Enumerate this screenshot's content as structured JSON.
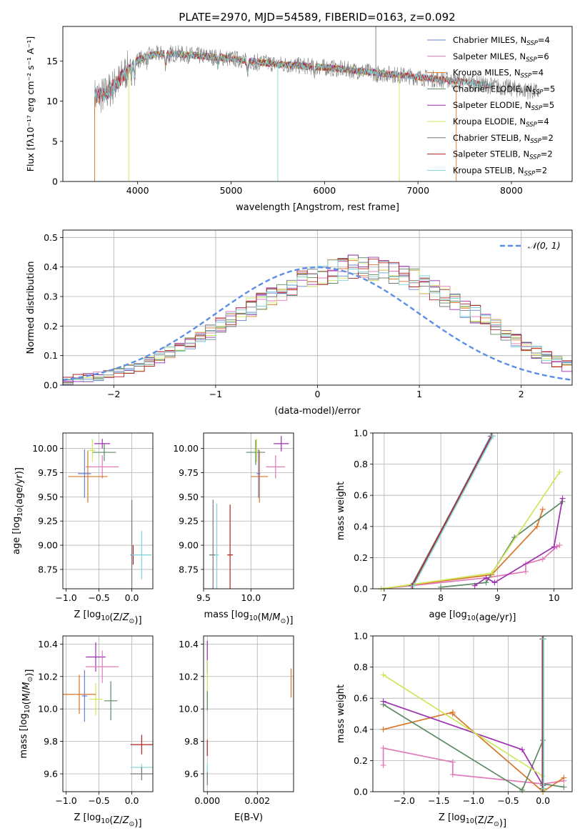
{
  "figure_title": "PLATE=2970, MJD=54589, FIBERID=0163, z=0.092",
  "colors": {
    "Chabrier MILES": "#6a7fd0",
    "Salpeter MILES": "#e07ab8",
    "Kroupa MILES": "#d8762a",
    "Chabrier ELODIE": "#5c8a62",
    "Salpeter ELODIE": "#9b2fb0",
    "Kroupa ELODIE": "#cfe65a",
    "Chabrier STELIB": "#777777",
    "Salpeter STELIB": "#b22222",
    "Kroupa STELIB": "#7fd3d8",
    "normal_curve": "#5b8ee6"
  },
  "chart_data": [
    {
      "id": "spectrum",
      "type": "line",
      "title": "PLATE=2970, MJD=54589, FIBERID=0163, z=0.092",
      "xlabel": "wavelength [Angstrom, rest frame]",
      "ylabel": "Flux [fλ10⁻¹⁷ erg cm⁻² s⁻¹ A⁻¹]",
      "xlim": [
        3200,
        8650
      ],
      "ylim": [
        0,
        19.3
      ],
      "xticks": [
        4000,
        5000,
        6000,
        7000,
        8000
      ],
      "yticks": [
        0,
        5,
        10,
        15
      ],
      "legend_position": "top-right",
      "continuum_anchors": {
        "x": [
          3500,
          3650,
          3800,
          3950,
          4100,
          4300,
          4600,
          5000,
          5500,
          6000,
          6500,
          7000,
          7400,
          7800,
          8000,
          8300,
          8650
        ],
        "y": [
          10.5,
          10.8,
          12.5,
          14.8,
          15.6,
          16.0,
          15.7,
          15.3,
          14.6,
          14.2,
          13.6,
          13.0,
          12.5,
          11.9,
          11.6,
          11.1,
          10.8
        ]
      },
      "series": [
        {
          "name": "Chabrier MILES, N_SSP=4",
          "legend": "Chabrier MILES, N",
          "sub": "SSP",
          "suffix": "=4",
          "x_range": [
            3540,
            7400
          ]
        },
        {
          "name": "Salpeter MILES, N_SSP=6",
          "legend": "Salpeter MILES, N",
          "sub": "SSP",
          "suffix": "=6",
          "x_range": [
            3540,
            7400
          ]
        },
        {
          "name": "Kroupa MILES, N_SSP=4",
          "legend": "Kroupa MILES, N",
          "sub": "SSP",
          "suffix": "=4",
          "x_range": [
            3540,
            7400
          ]
        },
        {
          "name": "Chabrier ELODIE, N_SSP=5",
          "legend": "Chabrier ELODIE, N",
          "sub": "SSP",
          "suffix": "=5",
          "x_range": [
            3900,
            6800
          ]
        },
        {
          "name": "Salpeter ELODIE, N_SSP=5",
          "legend": "Salpeter ELODIE, N",
          "sub": "SSP",
          "suffix": "=5",
          "x_range": [
            3900,
            6800
          ]
        },
        {
          "name": "Kroupa ELODIE, N_SSP=4",
          "legend": "Kroupa ELODIE, N",
          "sub": "SSP",
          "suffix": "=4",
          "x_range": [
            3900,
            6800
          ]
        },
        {
          "name": "Chabrier STELIB, N_SSP=2",
          "legend": "Chabrier STELIB, N",
          "sub": "SSP",
          "suffix": "=2",
          "x_range": [
            3540,
            7800
          ]
        },
        {
          "name": "Salpeter STELIB, N_SSP=2",
          "legend": "Salpeter STELIB, N",
          "sub": "SSP",
          "suffix": "=2",
          "x_range": [
            3540,
            7800
          ]
        },
        {
          "name": "Kroupa STELIB, N_SSP=2",
          "legend": "Kroupa STELIB, N",
          "sub": "SSP",
          "suffix": "=2",
          "x_range": [
            3540,
            7800
          ]
        }
      ],
      "data_series": {
        "name": "data",
        "x_range": [
          3540,
          8300
        ],
        "color": "#808080"
      }
    },
    {
      "id": "residuals",
      "type": "line",
      "xlabel": "(data-model)/error",
      "ylabel": "Normed distribution",
      "xlim": [
        -2.5,
        2.5
      ],
      "ylim": [
        0,
        0.525
      ],
      "xticks": [
        -2,
        -1,
        0,
        1,
        2
      ],
      "xtick_labels": [
        "−2",
        "−1",
        "0",
        "1",
        "2"
      ],
      "yticks": [
        0.0,
        0.1,
        0.2,
        0.3,
        0.4,
        0.5
      ],
      "grid": true,
      "legend_position": "top-right",
      "legend_label": "𝒩(0, 1)",
      "bin_width": 0.1,
      "bins_from": -2.5,
      "histogram_base": [
        0.018,
        0.022,
        0.026,
        0.03,
        0.038,
        0.045,
        0.055,
        0.065,
        0.08,
        0.095,
        0.11,
        0.125,
        0.14,
        0.16,
        0.18,
        0.2,
        0.22,
        0.245,
        0.265,
        0.29,
        0.305,
        0.32,
        0.34,
        0.355,
        0.365,
        0.375,
        0.385,
        0.395,
        0.4,
        0.398,
        0.395,
        0.39,
        0.38,
        0.37,
        0.355,
        0.34,
        0.32,
        0.3,
        0.28,
        0.26,
        0.24,
        0.22,
        0.195,
        0.175,
        0.15,
        0.13,
        0.112,
        0.095,
        0.078,
        0.065,
        0.053
      ],
      "normal": {
        "mean": 0,
        "sigma": 1
      }
    },
    {
      "id": "age-vs-Z",
      "type": "scatter",
      "xlabel": "Z [log10(Z/Z⊙)]",
      "ylabel": "age  [log10(age/yr)]",
      "xlim": [
        -1.05,
        0.32
      ],
      "ylim": [
        8.55,
        10.16
      ],
      "xticks": [
        -1.0,
        -0.5,
        0.0
      ],
      "xtick_labels": [
        "−1.0",
        "−0.5",
        "0.0"
      ],
      "yticks": [
        8.75,
        9.0,
        9.25,
        9.5,
        9.75,
        10.0
      ],
      "yticks_labels": [
        "8.75",
        "9.00",
        "9.25",
        "9.50",
        "9.75",
        "10.00"
      ],
      "grid": true,
      "points": [
        {
          "series": "Salpeter ELODIE",
          "x": -0.45,
          "y": 10.05,
          "xerr": 0.12,
          "yerr": 0.05
        },
        {
          "series": "Chabrier ELODIE",
          "x": -0.42,
          "y": 9.96,
          "xerr": 0.18,
          "yerr": 0.09
        },
        {
          "series": "Salpeter MILES",
          "x": -0.45,
          "y": 9.81,
          "xerr": 0.25,
          "yerr": 0.12
        },
        {
          "series": "Kroupa ELODIE",
          "x": -0.6,
          "y": 9.98,
          "xerr": 0.05,
          "yerr": 0.12
        },
        {
          "series": "Kroupa MILES",
          "x": -0.67,
          "y": 9.71,
          "xerr": 0.3,
          "yerr": 0.27
        },
        {
          "series": "Chabrier MILES",
          "x": -0.72,
          "y": 9.74,
          "xerr": 0.1,
          "yerr": 0.25
        },
        {
          "series": "Chabrier STELIB",
          "x": 0.0,
          "y": 8.9,
          "xerr": 0.02,
          "yerr": 0.57
        },
        {
          "series": "Salpeter STELIB",
          "x": 0.02,
          "y": 8.9,
          "xerr": 0.02,
          "yerr": 0.1
        },
        {
          "series": "Kroupa STELIB",
          "x": 0.15,
          "y": 8.9,
          "xerr": 0.15,
          "yerr": 0.25
        }
      ]
    },
    {
      "id": "age-vs-mass",
      "type": "scatter",
      "xlabel": "mass [log10(M/M⊙)]",
      "ylabel": "",
      "xlim": [
        9.5,
        10.45
      ],
      "ylim": [
        8.55,
        10.16
      ],
      "xticks": [
        9.5,
        10.0
      ],
      "xtick_labels": [
        "9.5",
        "10.0"
      ],
      "yticks": [
        8.75,
        9.0,
        9.25,
        9.5,
        9.75,
        10.0
      ],
      "yticks_labels": [
        "8.75",
        "9.00",
        "9.25",
        "9.50",
        "9.75",
        "10.00"
      ],
      "grid": true,
      "points": [
        {
          "series": "Salpeter ELODIE",
          "x": 10.32,
          "y": 10.05,
          "xerr": 0.08,
          "yerr": 0.08
        },
        {
          "series": "Chabrier ELODIE",
          "x": 10.05,
          "y": 9.96,
          "xerr": 0.1,
          "yerr": 0.13
        },
        {
          "series": "Salpeter MILES",
          "x": 10.26,
          "y": 9.81,
          "xerr": 0.1,
          "yerr": 0.12
        },
        {
          "series": "Kroupa ELODIE",
          "x": 10.06,
          "y": 9.98,
          "xerr": 0.03,
          "yerr": 0.12
        },
        {
          "series": "Kroupa MILES",
          "x": 10.09,
          "y": 9.71,
          "xerr": 0.09,
          "yerr": 0.27
        },
        {
          "series": "Chabrier MILES",
          "x": 10.08,
          "y": 9.74,
          "xerr": 0.02,
          "yerr": 0.25
        },
        {
          "series": "Chabrier STELIB",
          "x": 9.6,
          "y": 8.9,
          "xerr": 0.04,
          "yerr": 0.57
        },
        {
          "series": "Salpeter STELIB",
          "x": 9.78,
          "y": 8.9,
          "xerr": 0.03,
          "yerr": 0.52
        },
        {
          "series": "Kroupa STELIB",
          "x": 9.64,
          "y": 8.9,
          "xerr": 0.02,
          "yerr": 0.53
        }
      ]
    },
    {
      "id": "massweight-vs-age",
      "type": "line",
      "xlabel": "age  [log10(age/yr)]",
      "ylabel": "mass weight",
      "xlim": [
        6.8,
        10.32
      ],
      "ylim": [
        0,
        1.0
      ],
      "xticks": [
        7,
        8,
        9,
        10
      ],
      "xtick_labels": [
        "7",
        "8",
        "9",
        "10"
      ],
      "yticks": [
        0.0,
        0.2,
        0.4,
        0.6,
        0.8,
        1.0
      ],
      "grid": true,
      "series": [
        {
          "name": "Chabrier MILES",
          "x": [
            7.5,
            8.88
          ],
          "y": [
            0.02,
            0.98
          ]
        },
        {
          "name": "Salpeter MILES",
          "x": [
            6.95,
            8.8,
            9.5,
            9.5,
            9.8,
            10.05,
            10.1
          ],
          "y": [
            0.0,
            0.07,
            0.11,
            0.16,
            0.19,
            0.27,
            0.28
          ]
        },
        {
          "name": "Kroupa MILES",
          "x": [
            6.95,
            8.9,
            9.7,
            9.8
          ],
          "y": [
            0.0,
            0.09,
            0.4,
            0.51
          ]
        },
        {
          "name": "Chabrier ELODIE",
          "x": [
            8.0,
            8.8,
            9.3,
            10.15
          ],
          "y": [
            0.01,
            0.04,
            0.33,
            0.56
          ]
        },
        {
          "name": "Salpeter ELODIE",
          "x": [
            8.6,
            8.8,
            8.95,
            10.0,
            10.15
          ],
          "y": [
            0.02,
            0.07,
            0.04,
            0.27,
            0.58
          ]
        },
        {
          "name": "Kroupa ELODIE",
          "x": [
            6.95,
            8.9,
            10.1
          ],
          "y": [
            0.0,
            0.1,
            0.75
          ]
        },
        {
          "name": "Chabrier STELIB",
          "x": [
            7.48,
            8.9
          ],
          "y": [
            0.02,
            0.98
          ]
        },
        {
          "name": "Salpeter STELIB",
          "x": [
            7.5,
            8.9
          ],
          "y": [
            0.02,
            0.98
          ]
        },
        {
          "name": "Kroupa STELIB",
          "x": [
            7.52,
            8.92
          ],
          "y": [
            0.02,
            0.98
          ]
        }
      ]
    },
    {
      "id": "mass-vs-Z",
      "type": "scatter",
      "xlabel": "Z [log10(Z/Z⊙)]",
      "ylabel": "mass [log10(M/M⊙)]",
      "xlim": [
        -1.05,
        0.32
      ],
      "ylim": [
        9.49,
        10.45
      ],
      "xticks": [
        -1.0,
        -0.5,
        0.0
      ],
      "xtick_labels": [
        "−1.0",
        "−0.5",
        "0.0"
      ],
      "yticks": [
        9.6,
        9.8,
        10.0,
        10.2,
        10.4
      ],
      "yticks_labels": [
        "9.6",
        "9.8",
        "10.0",
        "10.2",
        "10.4"
      ],
      "grid": true,
      "points": [
        {
          "series": "Salpeter ELODIE",
          "x": -0.55,
          "y": 10.32,
          "xerr": 0.15,
          "yerr": 0.09
        },
        {
          "series": "Salpeter MILES",
          "x": -0.45,
          "y": 10.26,
          "xerr": 0.25,
          "yerr": 0.1
        },
        {
          "series": "Chabrier ELODIE",
          "x": -0.32,
          "y": 10.05,
          "xerr": 0.1,
          "yerr": 0.12
        },
        {
          "series": "Kroupa ELODIE",
          "x": -0.55,
          "y": 10.06,
          "xerr": 0.1,
          "yerr": 0.1
        },
        {
          "series": "Kroupa MILES",
          "x": -0.8,
          "y": 10.09,
          "xerr": 0.25,
          "yerr": 0.12
        },
        {
          "series": "Chabrier MILES",
          "x": -0.72,
          "y": 10.08,
          "xerr": 0.04,
          "yerr": 0.16
        },
        {
          "series": "Salpeter STELIB",
          "x": 0.15,
          "y": 9.78,
          "xerr": 0.17,
          "yerr": 0.06
        },
        {
          "series": "Kroupa STELIB",
          "x": 0.15,
          "y": 9.64,
          "xerr": 0.17,
          "yerr": 0.02
        },
        {
          "series": "Chabrier STELIB",
          "x": 0.15,
          "y": 9.6,
          "xerr": 0.17,
          "yerr": 0.04
        }
      ]
    },
    {
      "id": "mass-vs-EBV",
      "type": "scatter",
      "xlabel": "E(B-V)",
      "ylabel": "",
      "xlim": [
        -0.00015,
        0.00345
      ],
      "ylim": [
        9.49,
        10.45
      ],
      "xticks": [
        0.0,
        0.002
      ],
      "xtick_labels": [
        "0.000",
        "0.002"
      ],
      "yticks": [
        9.6,
        9.8,
        10.0,
        10.2,
        10.4
      ],
      "yticks_labels": [
        "9.6",
        "9.8",
        "10.0",
        "10.2",
        "10.4"
      ],
      "grid": true,
      "points": [
        {
          "series": "Salpeter ELODIE",
          "x": 0.0,
          "y": 10.32,
          "xerr": 0.0,
          "yerr": 0.1
        },
        {
          "series": "Kroupa ELODIE",
          "x": 0.0,
          "y": 10.18,
          "xerr": 0.0,
          "yerr": 0.12
        },
        {
          "series": "Chabrier ELODIE",
          "x": 0.0,
          "y": 10.05,
          "xerr": 0.0,
          "yerr": 0.06
        },
        {
          "series": "Salpeter STELIB",
          "x": 0.0,
          "y": 9.76,
          "xerr": 0.0,
          "yerr": 0.05
        },
        {
          "series": "Kroupa STELIB",
          "x": 0.0,
          "y": 9.62,
          "xerr": 0.0,
          "yerr": 0.04
        },
        {
          "series": "Chabrier STELIB",
          "x": 0.0,
          "y": 9.57,
          "xerr": 0.0,
          "yerr": 0.04
        },
        {
          "series": "Kroupa MILES",
          "x": 0.00335,
          "y": 10.16,
          "xerr": 0.0,
          "yerr": 0.09
        }
      ]
    },
    {
      "id": "massweight-vs-Z",
      "type": "line",
      "xlabel": "Z [log10(Z/Z⊙)]",
      "ylabel": "mass weight",
      "xlim": [
        -2.45,
        0.42
      ],
      "ylim": [
        0,
        1.0
      ],
      "xticks": [
        -2.0,
        -1.5,
        -1.0,
        -0.5,
        0.0
      ],
      "xtick_labels": [
        "−2.0",
        "−1.5",
        "−1.0",
        "−0.5",
        "0.0"
      ],
      "yticks": [
        0.0,
        0.2,
        0.4,
        0.6,
        0.8,
        1.0
      ],
      "grid": true,
      "series": [
        {
          "name": "Chabrier MILES",
          "x": [
            0.0,
            0.0
          ],
          "y": [
            0.02,
            0.98
          ]
        },
        {
          "name": "Salpeter MILES",
          "x": [
            -2.3,
            -2.3,
            -1.3,
            -1.3,
            0.0,
            0.3
          ],
          "y": [
            0.17,
            0.28,
            0.19,
            0.11,
            0.05,
            0.07
          ]
        },
        {
          "name": "Kroupa MILES",
          "x": [
            -2.3,
            -1.3,
            -1.3,
            0.0,
            0.3
          ],
          "y": [
            0.4,
            0.51,
            0.5,
            0.0,
            0.09
          ]
        },
        {
          "name": "Chabrier ELODIE",
          "x": [
            -2.3,
            -0.3,
            0.0,
            0.0,
            0.3
          ],
          "y": [
            0.56,
            0.01,
            0.33,
            0.05,
            0.03
          ]
        },
        {
          "name": "Salpeter ELODIE",
          "x": [
            -2.3,
            -0.3,
            0.0,
            0.0
          ],
          "y": [
            0.58,
            0.27,
            0.04,
            0.02
          ]
        },
        {
          "name": "Kroupa ELODIE",
          "x": [
            -2.3,
            0.0,
            0.0
          ],
          "y": [
            0.75,
            0.1,
            0.01
          ]
        },
        {
          "name": "Chabrier STELIB",
          "x": [
            -0.01,
            -0.01
          ],
          "y": [
            0.02,
            0.98
          ]
        },
        {
          "name": "Salpeter STELIB",
          "x": [
            0.0,
            0.0
          ],
          "y": [
            0.02,
            0.98
          ]
        },
        {
          "name": "Kroupa STELIB",
          "x": [
            0.01,
            0.01
          ],
          "y": [
            0.02,
            0.98
          ]
        }
      ]
    }
  ]
}
